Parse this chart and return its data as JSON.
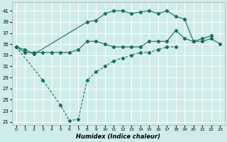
{
  "xlabel": "Humidex (Indice chaleur)",
  "bg_color": "#ceecea",
  "grid_color": "#ffffff",
  "line_color": "#1a6b5e",
  "xlim": [
    -0.5,
    23.5
  ],
  "ylim": [
    20.5,
    42.5
  ],
  "yticks": [
    21,
    23,
    25,
    27,
    29,
    31,
    33,
    35,
    37,
    39,
    41
  ],
  "xticks": [
    0,
    1,
    2,
    3,
    4,
    5,
    6,
    7,
    8,
    9,
    10,
    11,
    12,
    13,
    14,
    15,
    16,
    17,
    18,
    19,
    20,
    21,
    22,
    23
  ],
  "top_x": [
    0,
    1,
    2,
    8,
    9,
    10,
    11,
    12,
    13,
    14,
    15,
    16,
    17,
    18,
    19,
    20,
    21,
    22
  ],
  "top_y": [
    34.5,
    34.0,
    33.2,
    39.0,
    39.3,
    40.5,
    41.0,
    41.0,
    40.5,
    40.8,
    41.0,
    40.5,
    41.0,
    40.0,
    39.5,
    35.5,
    36.0,
    36.5
  ],
  "mid_x": [
    0,
    1,
    2,
    3,
    4,
    5,
    6,
    7,
    8,
    9,
    10,
    11,
    12,
    13,
    14,
    15,
    16,
    17,
    18,
    19,
    20,
    21,
    22,
    23
  ],
  "mid_y": [
    34.5,
    33.5,
    33.5,
    33.5,
    33.5,
    33.5,
    33.5,
    34.0,
    35.5,
    35.5,
    35.0,
    34.5,
    34.5,
    34.5,
    34.5,
    35.5,
    35.5,
    35.5,
    37.5,
    36.0,
    35.5,
    35.5,
    36.0,
    35.0
  ],
  "bot_x": [
    0,
    3,
    5,
    6,
    7,
    8,
    9,
    10,
    11,
    12,
    13,
    14,
    15,
    16,
    17,
    18
  ],
  "bot_y": [
    34.5,
    28.5,
    24.0,
    21.2,
    21.5,
    28.5,
    30.0,
    31.0,
    32.0,
    32.5,
    33.0,
    33.5,
    33.5,
    34.0,
    34.5,
    34.5
  ]
}
